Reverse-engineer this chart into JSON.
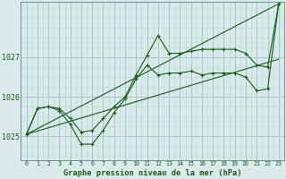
{
  "background_color": "#daeaea",
  "grid_color_major": "#aacaca",
  "grid_color_minor": "#c0dada",
  "line_color": "#1a5c1a",
  "title": "Graphe pression niveau de la mer (hPa)",
  "xlim": [
    -0.5,
    23.5
  ],
  "ylim": [
    1024.4,
    1028.4
  ],
  "yticks": [
    1025,
    1026,
    1027
  ],
  "xticks": [
    0,
    1,
    2,
    3,
    4,
    5,
    6,
    7,
    8,
    9,
    10,
    11,
    12,
    13,
    14,
    15,
    16,
    17,
    18,
    19,
    20,
    21,
    22,
    23
  ],
  "series1_x": [
    0,
    1,
    2,
    3,
    4,
    5,
    6,
    7,
    8,
    9,
    10,
    11,
    12,
    13,
    14,
    15,
    16,
    17,
    18,
    19,
    20,
    21,
    22,
    23
  ],
  "series1_y": [
    1025.05,
    1025.7,
    1025.75,
    1025.7,
    1025.45,
    1025.1,
    1025.15,
    1025.45,
    1025.75,
    1026.0,
    1026.55,
    1027.05,
    1027.55,
    1027.1,
    1027.1,
    1027.15,
    1027.2,
    1027.2,
    1027.2,
    1027.2,
    1027.1,
    1026.8,
    1026.75,
    1028.35
  ],
  "series2_x": [
    0,
    1,
    2,
    3,
    4,
    5,
    6,
    7,
    8,
    9,
    10,
    11,
    12,
    13,
    14,
    15,
    16,
    17,
    18,
    19,
    20,
    21,
    22,
    23
  ],
  "series2_y": [
    1025.05,
    1025.7,
    1025.75,
    1025.65,
    1025.3,
    1024.8,
    1024.8,
    1025.15,
    1025.6,
    1025.95,
    1026.45,
    1026.8,
    1026.55,
    1026.6,
    1026.6,
    1026.65,
    1026.55,
    1026.6,
    1026.6,
    1026.6,
    1026.5,
    1026.15,
    1026.2,
    1028.35
  ],
  "line3": [
    [
      0,
      23
    ],
    [
      1025.05,
      1028.35
    ]
  ],
  "line4": [
    [
      0,
      23
    ],
    [
      1025.05,
      1026.95
    ]
  ]
}
